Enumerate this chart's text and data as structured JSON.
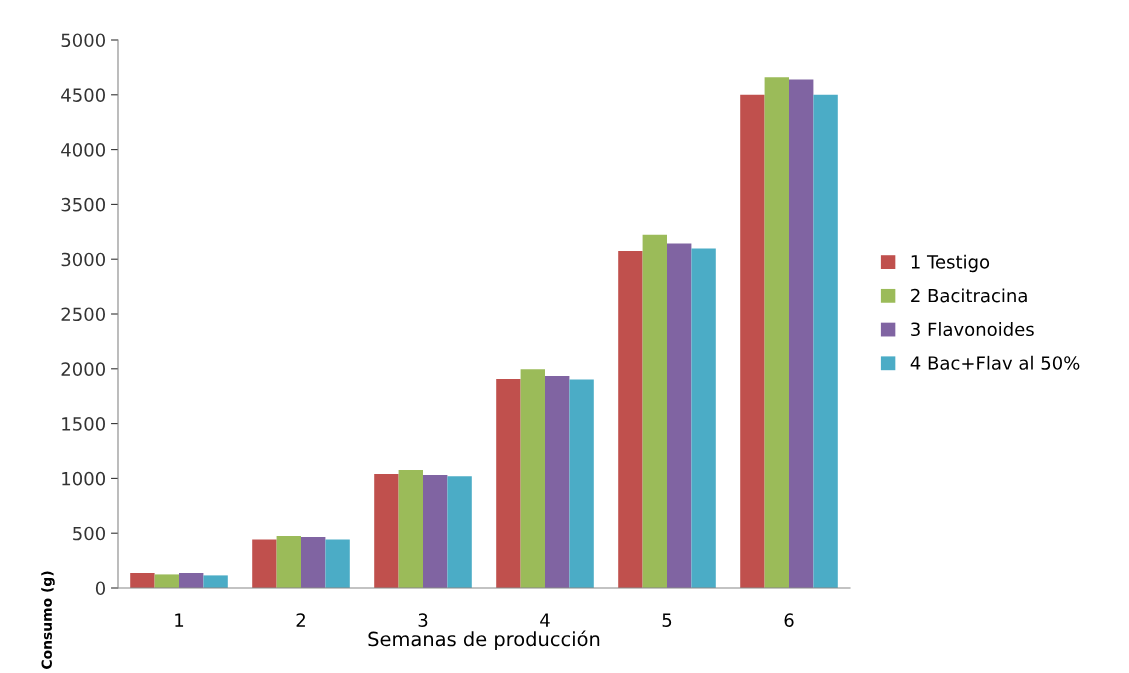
{
  "chart_data": {
    "type": "bar",
    "xlabel": "Semanas de producción",
    "ylabel": "Consumo (g)",
    "categories": [
      "1",
      "2",
      "3",
      "4",
      "5",
      "6"
    ],
    "series": [
      {
        "name": "1 Testigo",
        "color": "#c0504d",
        "values": [
          137,
          442,
          1041,
          1906,
          3075,
          4500
        ]
      },
      {
        "name": "2 Bacitracina",
        "color": "#9bbb59",
        "values": [
          124,
          475,
          1077,
          1997,
          3222,
          4660
        ]
      },
      {
        "name": "3 Flavonoides",
        "color": "#8064a2",
        "values": [
          137,
          465,
          1031,
          1935,
          3143,
          4640
        ]
      },
      {
        "name": "4 Bac+Flav al 50%",
        "color": "#4bacc6",
        "values": [
          115,
          442,
          1020,
          1902,
          3098,
          4500
        ]
      }
    ],
    "ylim": [
      0,
      5000
    ],
    "yticks": [
      0,
      500,
      1000,
      1500,
      2000,
      2500,
      3000,
      3500,
      4000,
      4500,
      5000
    ],
    "grid": false,
    "legend": "right"
  }
}
